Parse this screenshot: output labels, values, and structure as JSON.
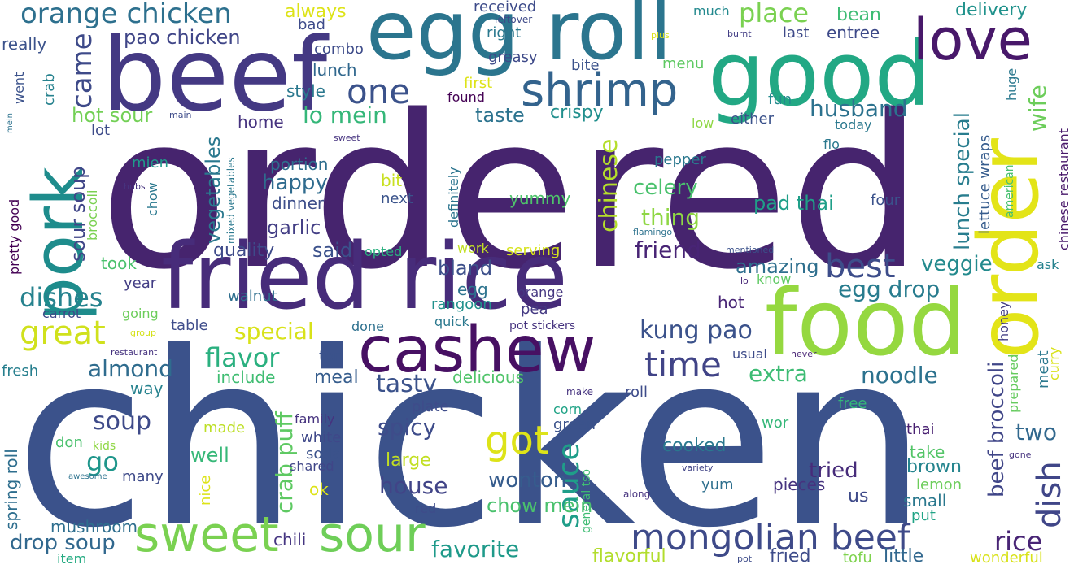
{
  "words": [
    {
      "text": "ordered",
      "color": "#46246e"
    },
    {
      "text": "chicken",
      "color": "#3b528b"
    },
    {
      "text": "fried rice",
      "color": "#472c7a"
    },
    {
      "text": "beef",
      "color": "#443983"
    },
    {
      "text": "egg roll",
      "color": "#2b758e"
    },
    {
      "text": "good",
      "color": "#22a884"
    },
    {
      "text": "food",
      "color": "#95d840"
    },
    {
      "text": "order",
      "color": "#e3e418"
    },
    {
      "text": "love",
      "color": "#48186a"
    },
    {
      "text": "cashew",
      "color": "#471063"
    },
    {
      "text": "pork",
      "color": "#1e8c8c"
    },
    {
      "text": "sweet",
      "color": "#7ad151"
    },
    {
      "text": "sour",
      "color": "#6ece58"
    },
    {
      "text": "shrimp",
      "color": "#33638d"
    },
    {
      "text": "mongolian beef",
      "color": "#3e4a89"
    },
    {
      "text": "orange chicken",
      "color": "#2d708e"
    },
    {
      "text": "got",
      "color": "#dde318"
    },
    {
      "text": "great",
      "color": "#d0e11c"
    },
    {
      "text": "time",
      "color": "#414487"
    },
    {
      "text": "one",
      "color": "#3b528b"
    },
    {
      "text": "best",
      "color": "#3d4d8a"
    },
    {
      "text": "came",
      "color": "#3e4a89"
    },
    {
      "text": "dish",
      "color": "#404688"
    },
    {
      "text": "sauce",
      "color": "#1f9e89"
    },
    {
      "text": "place",
      "color": "#7ad151"
    },
    {
      "text": "dishes",
      "color": "#26828e"
    },
    {
      "text": "flavor",
      "color": "#2ab07f"
    },
    {
      "text": "kung pao",
      "color": "#3b528b"
    },
    {
      "text": "rice",
      "color": "#482475"
    },
    {
      "text": "drop soup",
      "color": "#31688e"
    },
    {
      "text": "favorite",
      "color": "#1f9a8a"
    },
    {
      "text": "pao chicken",
      "color": "#404688"
    },
    {
      "text": "lo mein",
      "color": "#35b779"
    },
    {
      "text": "husband",
      "color": "#2c728e"
    },
    {
      "text": "egg drop",
      "color": "#287c8e"
    },
    {
      "text": "noodle",
      "color": "#2c728e"
    },
    {
      "text": "extra",
      "color": "#3dbc74"
    },
    {
      "text": "tasty",
      "color": "#3b528b"
    },
    {
      "text": "house",
      "color": "#414487"
    },
    {
      "text": "almond",
      "color": "#2f6c8e"
    },
    {
      "text": "special",
      "color": "#d8e219"
    },
    {
      "text": "lunch special",
      "color": "#287d8e"
    },
    {
      "text": "beef broccoli",
      "color": "#404688"
    },
    {
      "text": "chow mein",
      "color": "#4ac16d"
    },
    {
      "text": "wife",
      "color": "#6ccd5a"
    },
    {
      "text": "soup",
      "color": "#3e4a89"
    },
    {
      "text": "go",
      "color": "#1f968b"
    },
    {
      "text": "crab puff",
      "color": "#5ec962"
    },
    {
      "text": "chinese",
      "color": "#b5de2b"
    },
    {
      "text": "celery",
      "color": "#4ac16d"
    },
    {
      "text": "thing",
      "color": "#8fd744"
    },
    {
      "text": "friend",
      "color": "#482475"
    },
    {
      "text": "veggie",
      "color": "#238a8d"
    },
    {
      "text": "amazing",
      "color": "#2e6f8e"
    },
    {
      "text": "pad thai",
      "color": "#1f9f88"
    },
    {
      "text": "spicy",
      "color": "#3e4c8a"
    },
    {
      "text": "wonton",
      "color": "#365c8d"
    },
    {
      "text": "tried",
      "color": "#472c7a"
    },
    {
      "text": "two",
      "color": "#31688e"
    },
    {
      "text": "vegetables",
      "color": "#2a788e"
    },
    {
      "text": "sour soup",
      "color": "#404588"
    },
    {
      "text": "hot sour",
      "color": "#73d056"
    },
    {
      "text": "happy",
      "color": "#2f6b8e"
    },
    {
      "text": "garlic",
      "color": "#433e85"
    },
    {
      "text": "said",
      "color": "#3b518b"
    },
    {
      "text": "quality",
      "color": "#3e4a89"
    },
    {
      "text": "bland",
      "color": "#3c4f8a"
    },
    {
      "text": "delivery",
      "color": "#20928c"
    },
    {
      "text": "always",
      "color": "#dde318"
    },
    {
      "text": "taste",
      "color": "#2c738e"
    },
    {
      "text": "crispy",
      "color": "#218f8d"
    },
    {
      "text": "well",
      "color": "#37b878"
    },
    {
      "text": "cooked",
      "color": "#2a788e"
    },
    {
      "text": "large",
      "color": "#c2df23"
    },
    {
      "text": "brown",
      "color": "#25858e"
    },
    {
      "text": "meal",
      "color": "#365d8d"
    },
    {
      "text": "include",
      "color": "#40bd72"
    },
    {
      "text": "delicious",
      "color": "#50c46a"
    },
    {
      "text": "spring roll",
      "color": "#2e6e8e"
    },
    {
      "text": "mushroom",
      "color": "#2e6e8e"
    },
    {
      "text": "chili",
      "color": "#453581"
    },
    {
      "text": "little",
      "color": "#31678e"
    },
    {
      "text": "fried",
      "color": "#3e4c8a"
    },
    {
      "text": "tofu",
      "color": "#7fd34e"
    },
    {
      "text": "flavorful",
      "color": "#b2dd2d"
    },
    {
      "text": "wonderful",
      "color": "#d8e219"
    },
    {
      "text": "item",
      "color": "#25ab82"
    },
    {
      "text": "red",
      "color": "#3e4c8a"
    },
    {
      "text": "pieces",
      "color": "#46337f"
    },
    {
      "text": "us",
      "color": "#3e4a89"
    },
    {
      "text": "put",
      "color": "#20a486"
    },
    {
      "text": "lemon",
      "color": "#6ccd5a"
    },
    {
      "text": "small",
      "color": "#2a788e"
    },
    {
      "text": "take",
      "color": "#54c568"
    },
    {
      "text": "thai",
      "color": "#482071"
    },
    {
      "text": "yum",
      "color": "#2e6f8e"
    },
    {
      "text": "yummy",
      "color": "#4ec36b"
    },
    {
      "text": "dinner",
      "color": "#3d4e8a"
    },
    {
      "text": "portion",
      "color": "#2e6e8e"
    },
    {
      "text": "next",
      "color": "#3a538b"
    },
    {
      "text": "bit",
      "color": "#c8e020"
    },
    {
      "text": "mien",
      "color": "#1f9a8a"
    },
    {
      "text": "chow",
      "color": "#2a788e"
    },
    {
      "text": "broccoli",
      "color": "#7ad151"
    },
    {
      "text": "pretty good",
      "color": "#440154"
    },
    {
      "text": "mixed vegetables",
      "color": "#2a788e"
    },
    {
      "text": "took",
      "color": "#4ac16d"
    },
    {
      "text": "year",
      "color": "#433e85"
    },
    {
      "text": "carrot",
      "color": "#3f4889"
    },
    {
      "text": "going",
      "color": "#6ccd5a"
    },
    {
      "text": "table",
      "color": "#3e4c8a"
    },
    {
      "text": "fresh",
      "color": "#277f8e"
    },
    {
      "text": "way",
      "color": "#26828e"
    },
    {
      "text": "don",
      "color": "#4ac16d"
    },
    {
      "text": "kids",
      "color": "#8fd744"
    },
    {
      "text": "many",
      "color": "#3e4a89"
    },
    {
      "text": "awesome",
      "color": "#2c728e"
    },
    {
      "text": "nice",
      "color": "#dde318"
    },
    {
      "text": "shared",
      "color": "#404688"
    },
    {
      "text": "soda",
      "color": "#3b528b"
    },
    {
      "text": "white",
      "color": "#3f4889"
    },
    {
      "text": "family",
      "color": "#46337f"
    },
    {
      "text": "made",
      "color": "#bddf26"
    },
    {
      "text": "ok",
      "color": "#dde318"
    },
    {
      "text": "ton",
      "color": "#3b528b"
    },
    {
      "text": "plate",
      "color": "#3e4c8a"
    },
    {
      "text": "done",
      "color": "#2d708e"
    },
    {
      "text": "quick",
      "color": "#2a788e"
    },
    {
      "text": "rangoon",
      "color": "#21918c"
    },
    {
      "text": "egg",
      "color": "#2c738e"
    },
    {
      "text": "pea",
      "color": "#443983"
    },
    {
      "text": "orange",
      "color": "#453781"
    },
    {
      "text": "pot stickers",
      "color": "#46337f"
    },
    {
      "text": "walnut",
      "color": "#2e6e8e"
    },
    {
      "text": "opted",
      "color": "#2ab07f"
    },
    {
      "text": "work",
      "color": "#c2df23"
    },
    {
      "text": "serving",
      "color": "#d5e21a"
    },
    {
      "text": "definitely",
      "color": "#2b748e"
    },
    {
      "text": "make",
      "color": "#46337f"
    },
    {
      "text": "corn",
      "color": "#20a386"
    },
    {
      "text": "green",
      "color": "#3b528b"
    },
    {
      "text": "general tso",
      "color": "#3fbc73"
    },
    {
      "text": "roll",
      "color": "#3e4c8a"
    },
    {
      "text": "along",
      "color": "#46337f"
    },
    {
      "text": "variety",
      "color": "#414487"
    },
    {
      "text": "wor",
      "color": "#35b779"
    },
    {
      "text": "free",
      "color": "#35b779"
    },
    {
      "text": "prepared",
      "color": "#65cb5e"
    },
    {
      "text": "meat",
      "color": "#2a788e"
    },
    {
      "text": "curry",
      "color": "#d8e219"
    },
    {
      "text": "honey",
      "color": "#433e85"
    },
    {
      "text": "gone",
      "color": "#46337f"
    },
    {
      "text": "never",
      "color": "#482475"
    },
    {
      "text": "usual",
      "color": "#3e4c8a"
    },
    {
      "text": "hot",
      "color": "#482575"
    },
    {
      "text": "know",
      "color": "#5ec962"
    },
    {
      "text": "lo",
      "color": "#482878"
    },
    {
      "text": "mentioned",
      "color": "#3b528b"
    },
    {
      "text": "ask",
      "color": "#26828e"
    },
    {
      "text": "four",
      "color": "#3b528b"
    },
    {
      "text": "american",
      "color": "#46c06f"
    },
    {
      "text": "lettuce wraps",
      "color": "#365c8d"
    },
    {
      "text": "huge",
      "color": "#2a788e"
    },
    {
      "text": "chinese restaurant",
      "color": "#48186a"
    },
    {
      "text": "flamingo",
      "color": "#2c728e"
    },
    {
      "text": "pepper",
      "color": "#2a788e"
    },
    {
      "text": "flo",
      "color": "#2a788e"
    },
    {
      "text": "either",
      "color": "#3b528b"
    },
    {
      "text": "low",
      "color": "#8fd744"
    },
    {
      "text": "today",
      "color": "#2a788e"
    },
    {
      "text": "fun",
      "color": "#238a8d"
    },
    {
      "text": "last",
      "color": "#3e4a89"
    },
    {
      "text": "entree",
      "color": "#3e4a89"
    },
    {
      "text": "bean",
      "color": "#3dbc74"
    },
    {
      "text": "much",
      "color": "#23898e"
    },
    {
      "text": "plus",
      "color": "#d8e219"
    },
    {
      "text": "burnt",
      "color": "#433e85"
    },
    {
      "text": "menu",
      "color": "#5ec962"
    },
    {
      "text": "bite",
      "color": "#3b528b"
    },
    {
      "text": "received",
      "color": "#3e4c8a"
    },
    {
      "text": "leftover",
      "color": "#3e4a89"
    },
    {
      "text": "right",
      "color": "#2a788e"
    },
    {
      "text": "greasy",
      "color": "#3e4a89"
    },
    {
      "text": "first",
      "color": "#dde318"
    },
    {
      "text": "found",
      "color": "#440154"
    },
    {
      "text": "bad",
      "color": "#3e4c8a"
    },
    {
      "text": "combo",
      "color": "#3e4c8a"
    },
    {
      "text": "lunch",
      "color": "#31688e"
    },
    {
      "text": "style",
      "color": "#2a788e"
    },
    {
      "text": "home",
      "color": "#46337f"
    },
    {
      "text": "lot",
      "color": "#3e4c8a"
    },
    {
      "text": "crab",
      "color": "#26828e"
    },
    {
      "text": "went",
      "color": "#3b528b"
    },
    {
      "text": "really",
      "color": "#3b528b"
    },
    {
      "text": "mein",
      "color": "#2c728e"
    },
    {
      "text": "main",
      "color": "#3e4c8a"
    },
    {
      "text": "sweet",
      "color": "#46337f"
    },
    {
      "text": "hubs",
      "color": "#46337f"
    },
    {
      "text": "group",
      "color": "#d5e21a"
    },
    {
      "text": "restaurant",
      "color": "#46337f"
    },
    {
      "text": "pot",
      "color": "#3e4c8a"
    }
  ]
}
